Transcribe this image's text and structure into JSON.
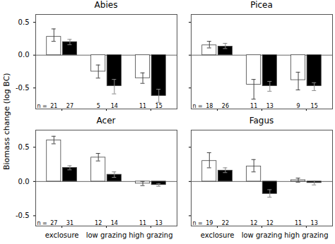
{
  "ylabel": "Biomass change (log BC)",
  "chart_data": [
    {
      "type": "bar",
      "title": "Abies",
      "categories": [
        null,
        null,
        null
      ],
      "series": [
        {
          "color": "#ffffff",
          "edge_color": "#444444",
          "error_color": "#444444",
          "values": [
            0.28,
            -0.25,
            -0.35
          ],
          "error_lo": [
            0.07,
            0.1,
            0.08
          ],
          "error_hi": [
            0.12,
            0.1,
            0.08
          ],
          "n": [
            21,
            5,
            11
          ]
        },
        {
          "color": "#000000",
          "edge_color": "#444444",
          "error_color": "#888888",
          "values": [
            0.2,
            -0.47,
            -0.62
          ],
          "error_lo": [
            0.04,
            0.12,
            0.1
          ],
          "error_hi": [
            0.04,
            0.1,
            0.1
          ],
          "n": [
            27,
            14,
            15
          ]
        }
      ],
      "n_label": "n =",
      "ylim": [
        -0.82,
        0.62
      ],
      "yticks": [
        -0.5,
        {
          "value": 0,
          "label": "0.0"
        },
        0.5
      ],
      "tick_labels": "y"
    },
    {
      "type": "bar",
      "title": "Picea",
      "categories": [
        null,
        null,
        null
      ],
      "series": [
        {
          "color": "#ffffff",
          "edge_color": "#444444",
          "error_color": "#444444",
          "values": [
            0.15,
            -0.45,
            -0.38
          ],
          "error_lo": [
            0.04,
            0.22,
            0.15
          ],
          "error_hi": [
            0.06,
            0.08,
            0.12
          ],
          "n": [
            18,
            11,
            9
          ]
        },
        {
          "color": "#000000",
          "edge_color": "#444444",
          "error_color": "#888888",
          "values": [
            0.13,
            -0.47,
            -0.47
          ],
          "error_lo": [
            0.03,
            0.08,
            0.07
          ],
          "error_hi": [
            0.05,
            0.07,
            0.05
          ],
          "n": [
            26,
            13,
            15
          ]
        }
      ],
      "n_label": "n =",
      "ylim": [
        -0.82,
        0.62
      ],
      "yticks": [
        -0.5,
        {
          "value": 0,
          "label": "0.0"
        },
        0.5
      ],
      "tick_labels": false
    },
    {
      "type": "bar",
      "title": "Acer",
      "categories": [
        "exclosure",
        "low grazing",
        "high grazing"
      ],
      "series": [
        {
          "color": "#ffffff",
          "edge_color": "#444444",
          "error_color": "#444444",
          "values": [
            0.6,
            0.35,
            -0.03
          ],
          "error_lo": [
            0.05,
            0.05,
            0.03
          ],
          "error_hi": [
            0.06,
            0.06,
            0.03
          ],
          "n": [
            27,
            12,
            11
          ]
        },
        {
          "color": "#000000",
          "edge_color": "#444444",
          "error_color": "#888888",
          "values": [
            0.2,
            0.1,
            -0.05
          ],
          "error_lo": [
            0.03,
            0.04,
            0.02
          ],
          "error_hi": [
            0.03,
            0.04,
            0.02
          ],
          "n": [
            31,
            14,
            13
          ]
        }
      ],
      "n_label": "n =",
      "ylim": [
        -0.65,
        0.75
      ],
      "yticks": [
        -0.5,
        {
          "value": 0,
          "label": "0.0"
        },
        0.5
      ]
    },
    {
      "type": "bar",
      "title": "Fagus",
      "categories": [
        "exclosure",
        "low grazing",
        "high grazing"
      ],
      "series": [
        {
          "color": "#ffffff",
          "edge_color": "#444444",
          "error_color": "#444444",
          "values": [
            0.3,
            0.22,
            0.02
          ],
          "error_lo": [
            0.1,
            0.08,
            0.03
          ],
          "error_hi": [
            0.12,
            0.1,
            0.03
          ],
          "n": [
            19,
            12,
            11
          ]
        },
        {
          "color": "#000000",
          "edge_color": "#444444",
          "error_color": "#888888",
          "values": [
            0.16,
            -0.18,
            -0.02
          ],
          "error_lo": [
            0.03,
            0.05,
            0.03
          ],
          "error_hi": [
            0.04,
            0.06,
            0.03
          ],
          "n": [
            22,
            12,
            13
          ]
        }
      ],
      "n_label": "n =",
      "ylim": [
        -0.65,
        0.75
      ],
      "yticks": [
        -0.5,
        {
          "value": 0,
          "label": "0.0"
        },
        0.5
      ],
      "tick_labels": "x"
    }
  ]
}
